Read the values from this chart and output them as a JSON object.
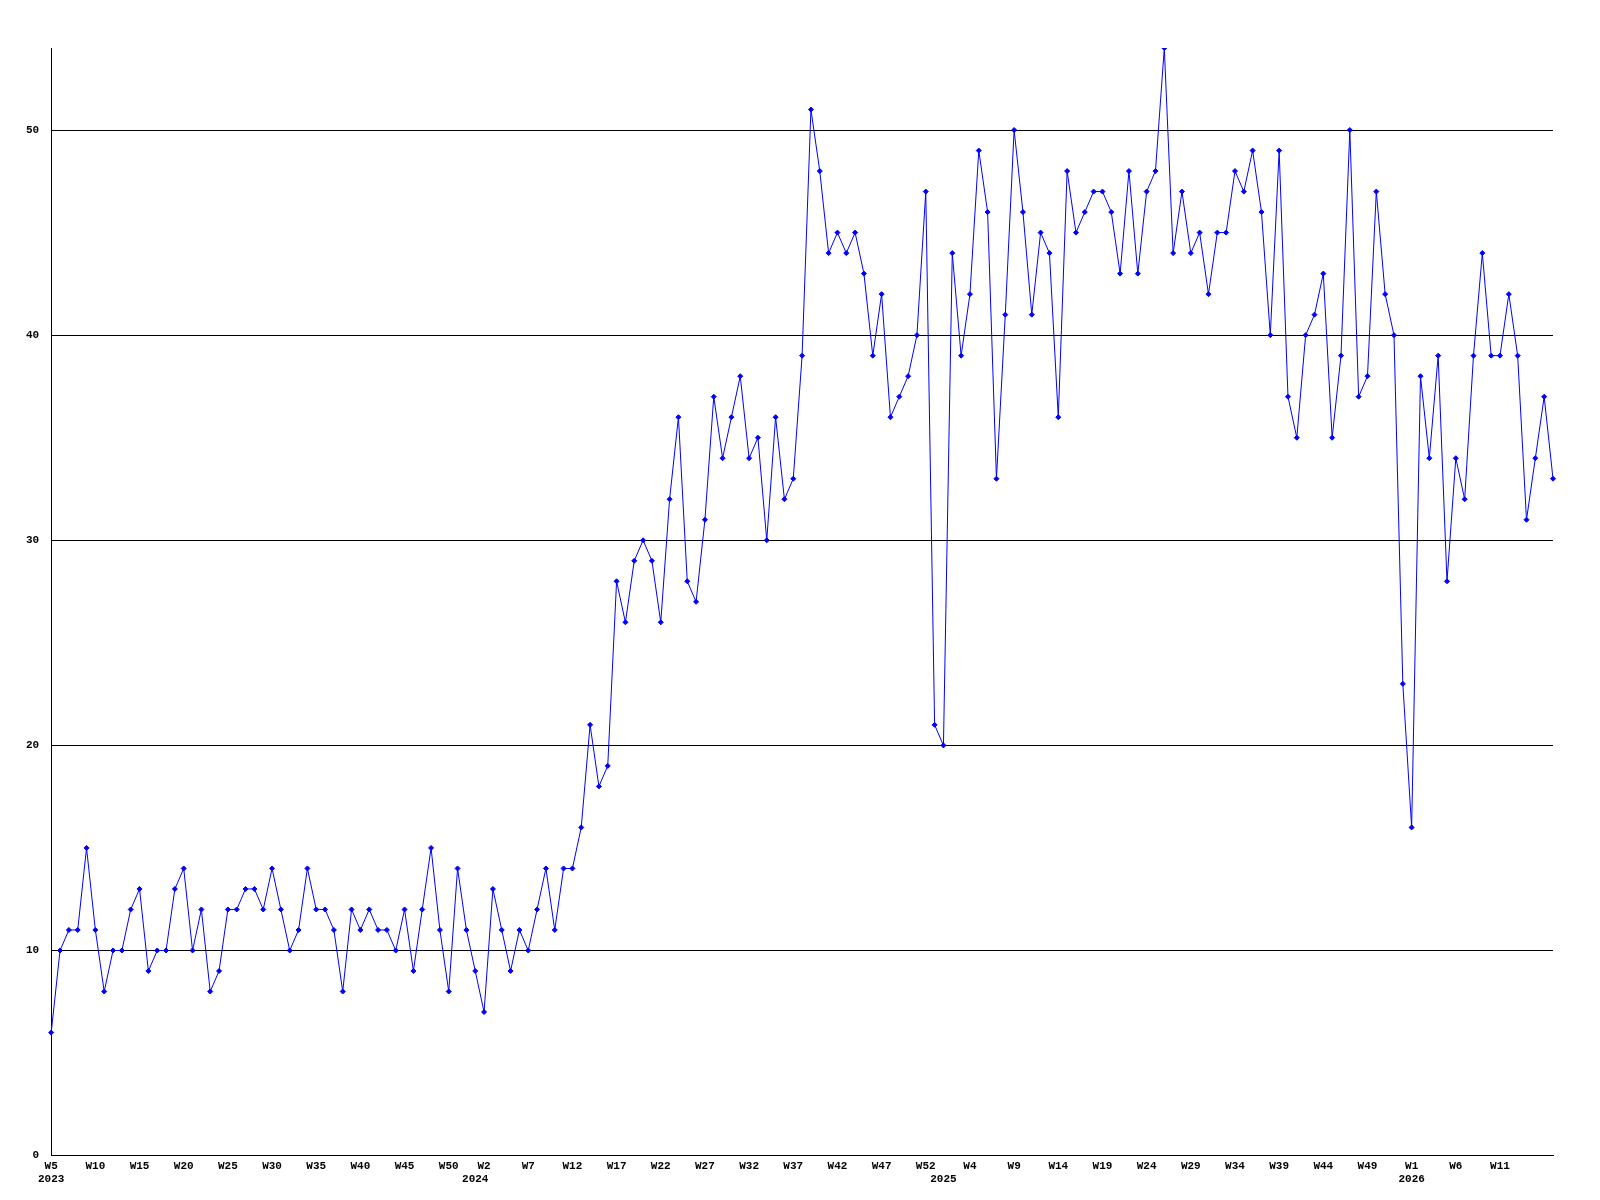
{
  "chart_data": {
    "type": "line",
    "categories": [
      "W5\n2023",
      null,
      null,
      null,
      null,
      "W10",
      null,
      null,
      null,
      null,
      "W15",
      null,
      null,
      null,
      null,
      "W20",
      null,
      null,
      null,
      null,
      "W25",
      null,
      null,
      null,
      null,
      "W30",
      null,
      null,
      null,
      null,
      "W35",
      null,
      null,
      null,
      null,
      "W40",
      null,
      null,
      null,
      null,
      "W45",
      null,
      null,
      null,
      null,
      "W50",
      null,
      null,
      "\n2024",
      "W2",
      null,
      null,
      null,
      null,
      "W7",
      null,
      null,
      null,
      null,
      "W12",
      null,
      null,
      null,
      null,
      "W17",
      null,
      null,
      null,
      null,
      "W22",
      null,
      null,
      null,
      null,
      "W27",
      null,
      null,
      null,
      null,
      "W32",
      null,
      null,
      null,
      null,
      "W37",
      null,
      null,
      null,
      null,
      "W42",
      null,
      null,
      null,
      null,
      "W47",
      null,
      null,
      null,
      null,
      "W52",
      null,
      "\n2025",
      null,
      null,
      "W4",
      null,
      null,
      null,
      null,
      "W9",
      null,
      null,
      null,
      null,
      "W14",
      null,
      null,
      null,
      null,
      "W19",
      null,
      null,
      null,
      null,
      "W24",
      null,
      null,
      null,
      null,
      "W29",
      null,
      null,
      null,
      null,
      "W34",
      null,
      null,
      null,
      null,
      "W39",
      null,
      null,
      null,
      null,
      "W44",
      null,
      null,
      null,
      null,
      "W49",
      null,
      null,
      null,
      null,
      "W1\n2026",
      null,
      null,
      null,
      null,
      "W6",
      null,
      null,
      null,
      null,
      "W11",
      null,
      null,
      null,
      null,
      null,
      null
    ],
    "series": [
      {
        "color": "#0000ff",
        "values": [
          6,
          10,
          11,
          11,
          15,
          11,
          8,
          10,
          10,
          12,
          13,
          9,
          10,
          10,
          13,
          14,
          10,
          12,
          8,
          9,
          12,
          12,
          13,
          13,
          12,
          14,
          12,
          10,
          11,
          14,
          12,
          12,
          11,
          8,
          12,
          11,
          12,
          11,
          11,
          10,
          12,
          9,
          12,
          15,
          11,
          8,
          14,
          11,
          9,
          7,
          13,
          11,
          9,
          11,
          10,
          12,
          14,
          11,
          14,
          14,
          16,
          21,
          18,
          19,
          28,
          26,
          29,
          30,
          29,
          26,
          32,
          36,
          28,
          27,
          31,
          37,
          34,
          36,
          38,
          34,
          35,
          30,
          36,
          32,
          33,
          39,
          51,
          48,
          44,
          45,
          44,
          45,
          43,
          39,
          42,
          36,
          37,
          38,
          40,
          47,
          21,
          20,
          44,
          39,
          42,
          49,
          46,
          33,
          41,
          50,
          46,
          41,
          45,
          44,
          36,
          48,
          45,
          46,
          47,
          47,
          46,
          43,
          48,
          43,
          47,
          48,
          54,
          44,
          47,
          44,
          45,
          42,
          45,
          45,
          48,
          47,
          49,
          46,
          40,
          49,
          37,
          35,
          40,
          41,
          43,
          35,
          39,
          50,
          37,
          38,
          47,
          42,
          40,
          23,
          16,
          38,
          34,
          39,
          28,
          34,
          32,
          39,
          44,
          39,
          39,
          42,
          39,
          31,
          34,
          37,
          33
        ]
      }
    ],
    "ylim": [
      0,
      54
    ],
    "yticks": [
      0,
      10,
      20,
      30,
      40,
      50
    ],
    "grid": "y",
    "legend": false,
    "marker": "diamond",
    "line_style": "solid"
  }
}
